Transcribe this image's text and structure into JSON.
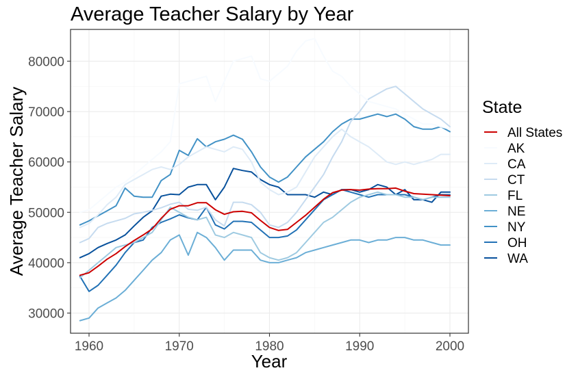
{
  "chart_data": {
    "type": "line",
    "title": "Average Teacher Salary by Year",
    "xlabel": "Year",
    "ylabel": "Average Teacher Salary",
    "xlim": [
      1957.95,
      2002.05
    ],
    "ylim": [
      26000,
      86300
    ],
    "xticks": [
      1960,
      1970,
      1980,
      1990,
      2000
    ],
    "yticks": [
      30000,
      40000,
      50000,
      60000,
      70000,
      80000
    ],
    "grid": true,
    "legend": {
      "title": "State",
      "position": "right"
    },
    "x": [
      1959,
      1960,
      1961,
      1962,
      1963,
      1964,
      1965,
      1966,
      1967,
      1968,
      1969,
      1970,
      1971,
      1972,
      1973,
      1974,
      1975,
      1976,
      1977,
      1978,
      1979,
      1980,
      1981,
      1982,
      1983,
      1984,
      1985,
      1986,
      1987,
      1988,
      1989,
      1990,
      1991,
      1992,
      1993,
      1994,
      1995,
      1996,
      1997,
      1998,
      1999,
      2000
    ],
    "series": [
      {
        "name": "All States",
        "color": "#cc0000",
        "values": [
          37500,
          38000,
          39300,
          40700,
          41800,
          43200,
          44400,
          45500,
          46700,
          48800,
          50600,
          51300,
          51300,
          51900,
          51900,
          50500,
          49600,
          50100,
          50200,
          49900,
          48400,
          47000,
          46400,
          46600,
          48000,
          49400,
          51000,
          52600,
          53900,
          54400,
          54500,
          54400,
          54600,
          54700,
          54700,
          54800,
          54200,
          53700,
          53600,
          53500,
          53400,
          53300
        ]
      },
      {
        "name": "AK",
        "color": "#f7fbff",
        "values": [
          50000,
          50500,
          52000,
          53500,
          55000,
          56000,
          57500,
          59000,
          60500,
          62000,
          64000,
          75500,
          76000,
          76500,
          77000,
          72000,
          76000,
          80000,
          80500,
          81000,
          76500,
          76000,
          77500,
          79000,
          82000,
          84000,
          84500,
          81000,
          78000,
          77000,
          75000,
          73500,
          72000,
          71500,
          71000,
          70500,
          69500,
          68500,
          67500,
          67500,
          67000,
          66500
        ]
      },
      {
        "name": "CA",
        "color": "#deebf7",
        "values": [
          47000,
          47800,
          49500,
          51500,
          53000,
          55500,
          56500,
          57500,
          58500,
          59000,
          58500,
          59500,
          61000,
          62000,
          63000,
          62500,
          62000,
          63000,
          62500,
          60000,
          56000,
          54500,
          53500,
          54000,
          55000,
          58000,
          61000,
          63000,
          65000,
          66500,
          65000,
          64000,
          63000,
          61500,
          60000,
          59500,
          60000,
          59500,
          60000,
          60500,
          61500,
          61500
        ]
      },
      {
        "name": "CT",
        "color": "#c6dbef",
        "values": [
          44000,
          44800,
          47000,
          47800,
          48300,
          48800,
          49700,
          50000,
          50400,
          50900,
          51600,
          52000,
          50600,
          50400,
          51000,
          48500,
          47300,
          52000,
          52000,
          51500,
          50000,
          47500,
          47000,
          48000,
          50000,
          52500,
          55000,
          57500,
          61000,
          64000,
          68000,
          70000,
          72500,
          73500,
          74500,
          75000,
          73500,
          72000,
          70500,
          69500,
          68500,
          67000
        ]
      },
      {
        "name": "FL",
        "color": "#9ecae1",
        "values": [
          37000,
          38500,
          40000,
          41500,
          43000,
          43500,
          44000,
          45000,
          46000,
          48500,
          51000,
          50000,
          49000,
          48500,
          49000,
          45500,
          45000,
          46000,
          45500,
          45000,
          42000,
          41000,
          40500,
          41000,
          42000,
          44000,
          46000,
          48000,
          49000,
          50500,
          52000,
          53000,
          53500,
          54000,
          53500,
          53500,
          53000,
          53000,
          52500,
          53000,
          53000,
          53000
        ]
      },
      {
        "name": "NE",
        "color": "#6baed6",
        "values": [
          28500,
          29000,
          31000,
          32000,
          33000,
          34500,
          36500,
          38500,
          40500,
          42000,
          44500,
          45500,
          41500,
          46000,
          45000,
          43000,
          40500,
          42500,
          42500,
          42500,
          40500,
          40000,
          40000,
          40500,
          41000,
          42000,
          42500,
          43000,
          43500,
          44000,
          44500,
          44500,
          44000,
          44500,
          44500,
          45000,
          45000,
          44500,
          44500,
          44000,
          43500,
          43500
        ]
      },
      {
        "name": "NY",
        "color": "#4292c6",
        "values": [
          47500,
          48300,
          49300,
          50300,
          51300,
          54800,
          53200,
          53000,
          53000,
          56300,
          57500,
          62300,
          61300,
          64600,
          63000,
          64000,
          64500,
          65300,
          64500,
          62000,
          59000,
          57000,
          56000,
          57000,
          59000,
          61000,
          62500,
          64000,
          66000,
          67500,
          68500,
          68500,
          69000,
          69500,
          69000,
          69500,
          68500,
          67000,
          66500,
          66500,
          67000,
          66000
        ]
      },
      {
        "name": "OH",
        "color": "#2171b5",
        "values": [
          37300,
          34300,
          35500,
          37500,
          39500,
          42000,
          44000,
          44500,
          47000,
          48000,
          48700,
          49500,
          48900,
          48500,
          51000,
          47500,
          46700,
          48200,
          48200,
          48000,
          46500,
          45000,
          45000,
          45300,
          46500,
          48500,
          50500,
          52500,
          53500,
          54500,
          54000,
          53500,
          53000,
          53500,
          53500,
          53500,
          53500,
          53000,
          52500,
          53000,
          53500,
          53500
        ]
      },
      {
        "name": "WA",
        "color": "#08519c",
        "values": [
          41000,
          41800,
          43000,
          43800,
          44500,
          45500,
          47300,
          49000,
          50300,
          53200,
          53600,
          53500,
          55000,
          55500,
          55500,
          52500,
          55000,
          58700,
          58300,
          58000,
          56500,
          55500,
          55000,
          53500,
          53500,
          53500,
          53000,
          54000,
          53500,
          54500,
          54500,
          54000,
          54500,
          55500,
          55000,
          53500,
          54500,
          52500,
          52500,
          52000,
          54000,
          54000
        ]
      }
    ]
  }
}
